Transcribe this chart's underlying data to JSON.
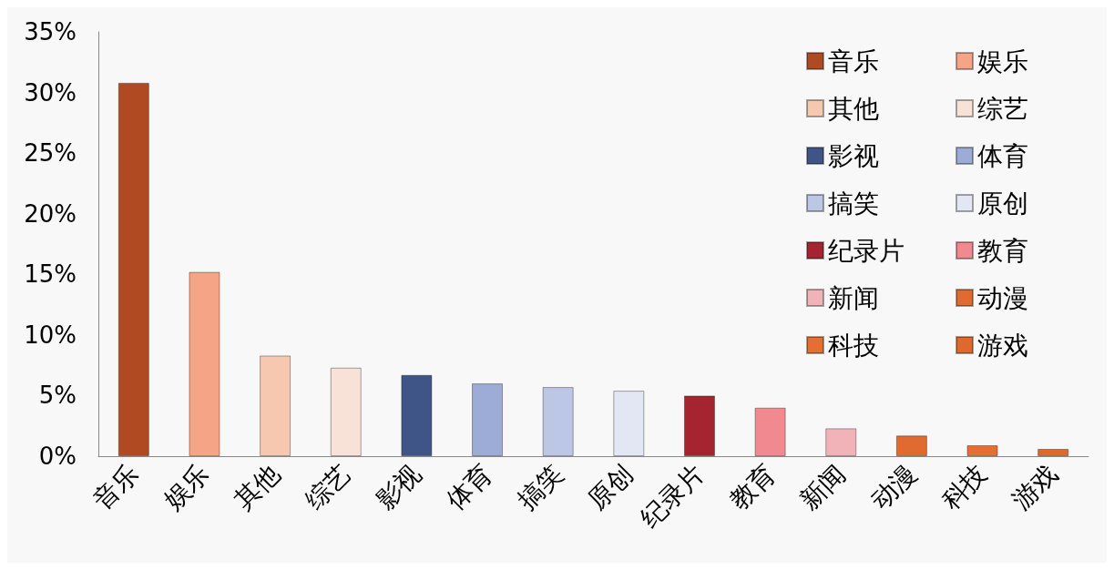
{
  "chart_data": {
    "type": "bar",
    "categories": [
      "音乐",
      "娱乐",
      "其他",
      "综艺",
      "影视",
      "体育",
      "搞笑",
      "原创",
      "纪录片",
      "教育",
      "新闻",
      "动漫",
      "科技",
      "游戏"
    ],
    "series": [
      {
        "name": "音乐",
        "color": "#b04a22",
        "values": [
          30.8,
          null,
          null,
          null,
          null,
          null,
          null,
          null,
          null,
          null,
          null,
          null,
          null,
          null
        ]
      },
      {
        "name": "娱乐",
        "color": "#f5a585",
        "values": [
          null,
          15.2,
          null,
          null,
          null,
          null,
          null,
          null,
          null,
          null,
          null,
          null,
          null,
          null
        ]
      },
      {
        "name": "其他",
        "color": "#f7c8b0",
        "values": [
          null,
          null,
          8.3,
          null,
          null,
          null,
          null,
          null,
          null,
          null,
          null,
          null,
          null,
          null
        ]
      },
      {
        "name": "综艺",
        "color": "#f8e2d8",
        "values": [
          null,
          null,
          null,
          7.3,
          null,
          null,
          null,
          null,
          null,
          null,
          null,
          null,
          null,
          null
        ]
      },
      {
        "name": "影视",
        "color": "#3f5487",
        "values": [
          null,
          null,
          null,
          null,
          6.7,
          null,
          null,
          null,
          null,
          null,
          null,
          null,
          null,
          null
        ]
      },
      {
        "name": "体育",
        "color": "#9cacd6",
        "values": [
          null,
          null,
          null,
          null,
          null,
          6.0,
          null,
          null,
          null,
          null,
          null,
          null,
          null,
          null
        ]
      },
      {
        "name": "搞笑",
        "color": "#bcc7e6",
        "values": [
          null,
          null,
          null,
          null,
          null,
          null,
          5.7,
          null,
          null,
          null,
          null,
          null,
          null,
          null
        ]
      },
      {
        "name": "原创",
        "color": "#e3e7f4",
        "values": [
          null,
          null,
          null,
          null,
          null,
          null,
          null,
          5.4,
          null,
          null,
          null,
          null,
          null,
          null
        ]
      },
      {
        "name": "纪录片",
        "color": "#a52430",
        "values": [
          null,
          null,
          null,
          null,
          null,
          null,
          null,
          null,
          5.0,
          null,
          null,
          null,
          null,
          null
        ]
      },
      {
        "name": "教育",
        "color": "#f08a90",
        "values": [
          null,
          null,
          null,
          null,
          null,
          null,
          null,
          null,
          null,
          4.0,
          null,
          null,
          null,
          null
        ]
      },
      {
        "name": "新闻",
        "color": "#f2b3b8",
        "values": [
          null,
          null,
          null,
          null,
          null,
          null,
          null,
          null,
          null,
          null,
          2.3,
          null,
          null,
          null
        ]
      },
      {
        "name": "动漫",
        "color": "#e06a30",
        "values": [
          null,
          null,
          null,
          null,
          null,
          null,
          null,
          null,
          null,
          null,
          null,
          1.7,
          null,
          null
        ]
      },
      {
        "name": "科技",
        "color": "#e56e32",
        "values": [
          null,
          null,
          null,
          null,
          null,
          null,
          null,
          null,
          null,
          null,
          null,
          null,
          0.9,
          null
        ]
      },
      {
        "name": "游戏",
        "color": "#e0682c",
        "values": [
          null,
          null,
          null,
          null,
          null,
          null,
          null,
          null,
          null,
          null,
          null,
          null,
          null,
          0.6
        ]
      }
    ],
    "ylim": [
      0,
      35
    ],
    "yticks": [
      {
        "value": 0,
        "label": "0%"
      },
      {
        "value": 5,
        "label": "5%"
      },
      {
        "value": 10,
        "label": "10%"
      },
      {
        "value": 15,
        "label": "15%"
      },
      {
        "value": 20,
        "label": "20%"
      },
      {
        "value": 25,
        "label": "25%"
      },
      {
        "value": 30,
        "label": "30%"
      },
      {
        "value": 35,
        "label": "35%"
      }
    ],
    "grid": false,
    "legend": "top right"
  }
}
